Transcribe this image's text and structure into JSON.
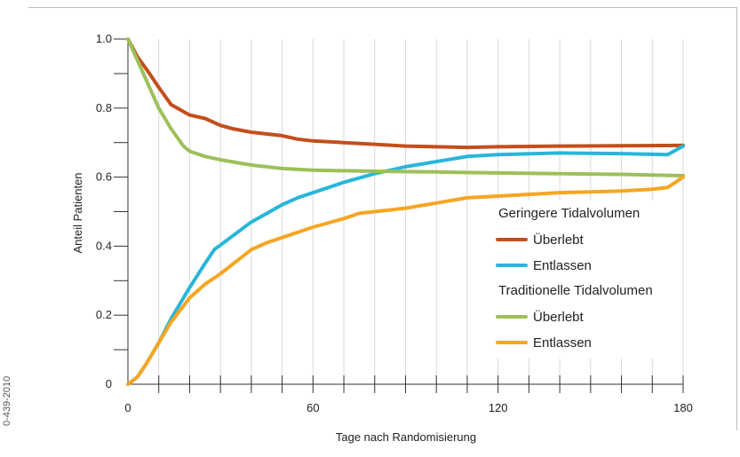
{
  "figure_code": "0-439-2010",
  "chart_data": {
    "type": "line",
    "xlabel": "Tage nach Randomisierung",
    "ylabel": "Anteil Patienten",
    "xlim": [
      0,
      180
    ],
    "ylim": [
      0,
      1.0
    ],
    "x_ticks": [
      0,
      60,
      120,
      180
    ],
    "x_minor_step": 10,
    "y_ticks": [
      {
        "value": 0,
        "label": "0"
      },
      {
        "value": 0.2,
        "label": "0.2"
      },
      {
        "value": 0.4,
        "label": "0.4"
      },
      {
        "value": 0.6,
        "label": "0.6"
      },
      {
        "value": 0.8,
        "label": "0.8"
      },
      {
        "value": 1.0,
        "label": "1.0"
      }
    ],
    "y_minor_step": 0.1,
    "grid": {
      "vertical": true,
      "horizontal": false
    },
    "legend_position": "right",
    "legend_groups": [
      {
        "title": "Geringere Tidalvolumen",
        "series": [
          "Überlebt",
          "Entlassen"
        ],
        "series_index": [
          0,
          1
        ]
      },
      {
        "title": "Traditionelle Tidalvolumen",
        "series": [
          "Überlebt",
          "Entlassen"
        ],
        "series_index": [
          2,
          3
        ]
      }
    ],
    "series": [
      {
        "name": "Überlebt",
        "group": "Geringere Tidalvolumen",
        "color": "#c44e1c",
        "points": [
          [
            0,
            1.0
          ],
          [
            3,
            0.95
          ],
          [
            7,
            0.9
          ],
          [
            10,
            0.86
          ],
          [
            14,
            0.81
          ],
          [
            18,
            0.79
          ],
          [
            20,
            0.78
          ],
          [
            25,
            0.77
          ],
          [
            30,
            0.75
          ],
          [
            34,
            0.74
          ],
          [
            40,
            0.73
          ],
          [
            50,
            0.72
          ],
          [
            55,
            0.71
          ],
          [
            60,
            0.705
          ],
          [
            70,
            0.7
          ],
          [
            80,
            0.695
          ],
          [
            90,
            0.69
          ],
          [
            100,
            0.688
          ],
          [
            110,
            0.686
          ],
          [
            120,
            0.688
          ],
          [
            140,
            0.69
          ],
          [
            160,
            0.691
          ],
          [
            180,
            0.692
          ]
        ]
      },
      {
        "name": "Entlassen",
        "group": "Geringere Tidalvolumen",
        "color": "#29b6d8",
        "points": [
          [
            0,
            0.0
          ],
          [
            3,
            0.02
          ],
          [
            6,
            0.06
          ],
          [
            10,
            0.12
          ],
          [
            14,
            0.19
          ],
          [
            20,
            0.28
          ],
          [
            25,
            0.35
          ],
          [
            28,
            0.39
          ],
          [
            34,
            0.43
          ],
          [
            40,
            0.47
          ],
          [
            50,
            0.52
          ],
          [
            55,
            0.54
          ],
          [
            65,
            0.57
          ],
          [
            70,
            0.585
          ],
          [
            80,
            0.61
          ],
          [
            90,
            0.63
          ],
          [
            100,
            0.645
          ],
          [
            110,
            0.66
          ],
          [
            120,
            0.665
          ],
          [
            140,
            0.67
          ],
          [
            160,
            0.668
          ],
          [
            175,
            0.665
          ],
          [
            180,
            0.69
          ]
        ]
      },
      {
        "name": "Überlebt",
        "group": "Traditionelle Tidalvolumen",
        "color": "#9dc05a",
        "points": [
          [
            0,
            1.0
          ],
          [
            3,
            0.94
          ],
          [
            6,
            0.88
          ],
          [
            10,
            0.8
          ],
          [
            14,
            0.74
          ],
          [
            18,
            0.69
          ],
          [
            20,
            0.675
          ],
          [
            25,
            0.66
          ],
          [
            30,
            0.65
          ],
          [
            40,
            0.635
          ],
          [
            50,
            0.625
          ],
          [
            60,
            0.62
          ],
          [
            80,
            0.617
          ],
          [
            100,
            0.615
          ],
          [
            120,
            0.612
          ],
          [
            140,
            0.61
          ],
          [
            160,
            0.608
          ],
          [
            180,
            0.604
          ]
        ]
      },
      {
        "name": "Entlassen",
        "group": "Traditionelle Tidalvolumen",
        "color": "#f5a623",
        "points": [
          [
            0,
            0.0
          ],
          [
            3,
            0.02
          ],
          [
            6,
            0.06
          ],
          [
            10,
            0.12
          ],
          [
            14,
            0.18
          ],
          [
            20,
            0.25
          ],
          [
            25,
            0.29
          ],
          [
            30,
            0.32
          ],
          [
            35,
            0.355
          ],
          [
            40,
            0.39
          ],
          [
            45,
            0.41
          ],
          [
            50,
            0.425
          ],
          [
            60,
            0.455
          ],
          [
            70,
            0.48
          ],
          [
            75,
            0.495
          ],
          [
            80,
            0.5
          ],
          [
            90,
            0.51
          ],
          [
            100,
            0.525
          ],
          [
            110,
            0.54
          ],
          [
            120,
            0.545
          ],
          [
            140,
            0.555
          ],
          [
            160,
            0.56
          ],
          [
            170,
            0.565
          ],
          [
            175,
            0.57
          ],
          [
            180,
            0.6
          ]
        ]
      }
    ]
  }
}
